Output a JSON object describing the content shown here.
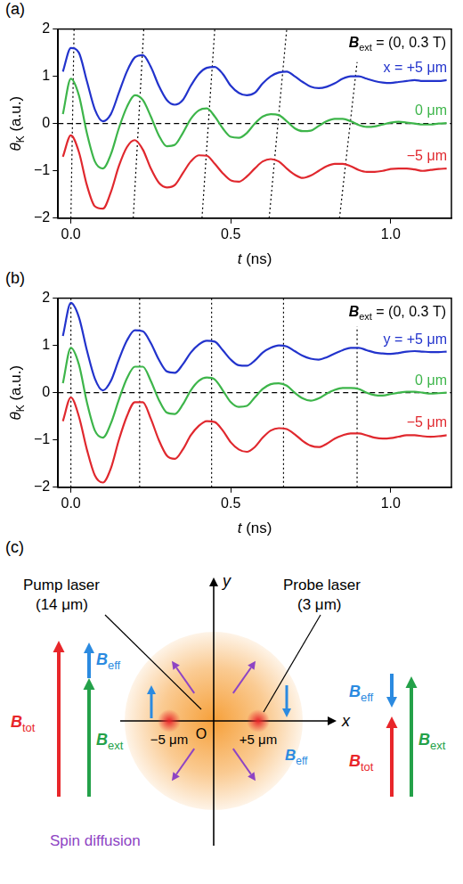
{
  "chart_data": [
    {
      "type": "line",
      "panel_label": "(a)",
      "annotation": [
        {
          "bi": "B"
        },
        {
          "sub": "ext"
        },
        " = (0, 0.3 T)"
      ],
      "x_label": [
        {
          "i": "t"
        },
        " (ns)"
      ],
      "y_label": [
        {
          "i": "θ"
        },
        {
          "sub": "K"
        },
        " (a.u.)"
      ],
      "x": [
        -0.025,
        0,
        0.025,
        0.05,
        0.075,
        0.1,
        0.125,
        0.15,
        0.175,
        0.2,
        0.225,
        0.25,
        0.275,
        0.3,
        0.325,
        0.35,
        0.375,
        0.4,
        0.425,
        0.45,
        0.475,
        0.5,
        0.525,
        0.55,
        0.575,
        0.6,
        0.625,
        0.65,
        0.675,
        0.7,
        0.725,
        0.75,
        0.775,
        0.8,
        0.825,
        0.85,
        0.875,
        0.9,
        0.925,
        0.95,
        0.975,
        1,
        1.025,
        1.05,
        1.075,
        1.1,
        1.125,
        1.15,
        1.175
      ],
      "series": [
        {
          "name": "x = +5 μm",
          "color": "#2233cc",
          "values": [
            1.1,
            1.6,
            1.5,
            0.9,
            0.3,
            0.05,
            0.2,
            0.65,
            1.1,
            1.4,
            1.45,
            1.2,
            0.8,
            0.5,
            0.4,
            0.5,
            0.8,
            1.05,
            1.18,
            1.2,
            1.05,
            0.8,
            0.65,
            0.6,
            0.65,
            0.85,
            1.0,
            1.08,
            1.1,
            1.0,
            0.88,
            0.78,
            0.75,
            0.78,
            0.85,
            0.95,
            1.0,
            1.0,
            0.95,
            0.9,
            0.87,
            0.86,
            0.88,
            0.9,
            0.92,
            0.9,
            0.9,
            0.9,
            0.92
          ]
        },
        {
          "name": "0 μm",
          "color": "#3db54a",
          "values": [
            0.2,
            0.95,
            0.6,
            -0.2,
            -0.8,
            -0.95,
            -0.65,
            -0.1,
            0.35,
            0.6,
            0.5,
            0.15,
            -0.25,
            -0.48,
            -0.45,
            -0.2,
            0.1,
            0.28,
            0.32,
            0.15,
            -0.1,
            -0.28,
            -0.3,
            -0.2,
            0.0,
            0.15,
            0.2,
            0.18,
            0.05,
            -0.1,
            -0.16,
            -0.15,
            -0.05,
            0.05,
            0.1,
            0.1,
            0.05,
            -0.03,
            -0.07,
            -0.06,
            -0.02,
            0.02,
            0.04,
            0.02,
            0.0,
            -0.02,
            -0.02,
            0.0,
            0.01
          ]
        },
        {
          "name": "−5 μm",
          "color": "#e0282e",
          "values": [
            -0.7,
            -0.25,
            -0.6,
            -1.3,
            -1.75,
            -1.8,
            -1.45,
            -0.9,
            -0.5,
            -0.35,
            -0.55,
            -0.95,
            -1.25,
            -1.35,
            -1.3,
            -1.05,
            -0.8,
            -0.67,
            -0.68,
            -0.85,
            -1.05,
            -1.2,
            -1.23,
            -1.12,
            -0.95,
            -0.8,
            -0.75,
            -0.8,
            -0.95,
            -1.08,
            -1.15,
            -1.1,
            -1.0,
            -0.9,
            -0.85,
            -0.85,
            -0.9,
            -0.98,
            -1.02,
            -1.02,
            -1.0,
            -0.96,
            -0.95,
            -0.95,
            -0.97,
            -1.0,
            -0.98,
            -0.96,
            -0.95
          ]
        }
      ],
      "xlim": [
        -0.04,
        1.19
      ],
      "ylim": [
        -2,
        2
      ],
      "xticks": [
        {
          "value": 0,
          "label": "0.0"
        },
        {
          "value": 0.5,
          "label": "0.5"
        },
        {
          "value": 1,
          "label": "1.0"
        }
      ],
      "yticks": [
        {
          "value": -2,
          "label": "−2"
        },
        {
          "value": -1,
          "label": "−1"
        },
        0,
        1,
        2
      ],
      "grid": false,
      "reference_lines": [
        {
          "y": 0,
          "line_style": "dashed"
        }
      ],
      "guide_lines": [
        {
          "x": [
            0.0,
            0.01
          ],
          "y": [
            -2,
            2
          ],
          "line_style": "dotted"
        },
        {
          "x": [
            0.195,
            0.228
          ],
          "y": [
            -2,
            2
          ],
          "line_style": "dotted"
        },
        {
          "x": [
            0.41,
            0.45
          ],
          "y": [
            -2,
            2
          ],
          "line_style": "dotted"
        },
        {
          "x": [
            0.62,
            0.675
          ],
          "y": [
            -2,
            2
          ],
          "line_style": "dotted"
        },
        {
          "x": [
            0.84,
            0.895
          ],
          "y": [
            -2,
            1.3
          ],
          "line_style": "dotted"
        }
      ]
    },
    {
      "type": "line",
      "panel_label": "(b)",
      "annotation": [
        {
          "bi": "B"
        },
        {
          "sub": "ext"
        },
        " = (0, 0.3 T)"
      ],
      "x_label": [
        {
          "i": "t"
        },
        " (ns)"
      ],
      "y_label": [
        {
          "i": "θ"
        },
        {
          "sub": "K"
        },
        " (a.u.)"
      ],
      "x": [
        -0.025,
        0,
        0.025,
        0.05,
        0.075,
        0.1,
        0.125,
        0.15,
        0.175,
        0.2,
        0.225,
        0.25,
        0.275,
        0.3,
        0.325,
        0.35,
        0.375,
        0.4,
        0.425,
        0.45,
        0.475,
        0.5,
        0.525,
        0.55,
        0.575,
        0.6,
        0.625,
        0.65,
        0.675,
        0.7,
        0.725,
        0.75,
        0.775,
        0.8,
        0.825,
        0.85,
        0.875,
        0.9,
        0.925,
        0.95,
        0.975,
        1,
        1.025,
        1.05,
        1.075,
        1.1,
        1.125,
        1.15,
        1.175
      ],
      "series": [
        {
          "name": "y = +5 μm",
          "color": "#2233cc",
          "values": [
            1.2,
            1.9,
            1.6,
            0.9,
            0.3,
            0.05,
            0.25,
            0.7,
            1.1,
            1.32,
            1.3,
            1.05,
            0.7,
            0.45,
            0.42,
            0.6,
            0.85,
            1.02,
            1.1,
            1.08,
            0.9,
            0.7,
            0.58,
            0.57,
            0.68,
            0.85,
            0.95,
            1.0,
            0.98,
            0.88,
            0.78,
            0.72,
            0.7,
            0.75,
            0.83,
            0.9,
            0.95,
            0.95,
            0.9,
            0.85,
            0.83,
            0.82,
            0.84,
            0.87,
            0.88,
            0.87,
            0.86,
            0.86,
            0.87
          ]
        },
        {
          "name": "0 μm",
          "color": "#3db54a",
          "values": [
            0.2,
            0.95,
            0.6,
            -0.2,
            -0.8,
            -0.95,
            -0.65,
            -0.15,
            0.3,
            0.55,
            0.55,
            0.25,
            -0.15,
            -0.42,
            -0.45,
            -0.25,
            0.05,
            0.25,
            0.32,
            0.28,
            0.05,
            -0.2,
            -0.3,
            -0.28,
            -0.1,
            0.08,
            0.18,
            0.2,
            0.15,
            0.0,
            -0.12,
            -0.17,
            -0.12,
            -0.02,
            0.06,
            0.1,
            0.1,
            0.08,
            0.0,
            -0.05,
            -0.06,
            -0.03,
            0.0,
            0.02,
            0.02,
            0.0,
            -0.02,
            -0.01,
            0.0
          ]
        },
        {
          "name": "−5 μm",
          "color": "#e0282e",
          "values": [
            -0.6,
            -0.1,
            -0.5,
            -1.2,
            -1.75,
            -1.9,
            -1.6,
            -1.0,
            -0.5,
            -0.2,
            -0.2,
            -0.55,
            -1.0,
            -1.33,
            -1.4,
            -1.2,
            -0.9,
            -0.7,
            -0.6,
            -0.62,
            -0.8,
            -1.05,
            -1.2,
            -1.25,
            -1.15,
            -0.95,
            -0.8,
            -0.75,
            -0.77,
            -0.88,
            -1.02,
            -1.12,
            -1.15,
            -1.08,
            -0.97,
            -0.9,
            -0.86,
            -0.86,
            -0.9,
            -0.95,
            -0.97,
            -0.96,
            -0.93,
            -0.9,
            -0.9,
            -0.92,
            -0.93,
            -0.92,
            -0.9
          ]
        }
      ],
      "xlim": [
        -0.04,
        1.19
      ],
      "ylim": [
        -2,
        2
      ],
      "xticks": [
        {
          "value": 0,
          "label": "0.0"
        },
        {
          "value": 0.5,
          "label": "0.5"
        },
        {
          "value": 1,
          "label": "1.0"
        }
      ],
      "yticks": [
        {
          "value": -2,
          "label": "−2"
        },
        {
          "value": -1,
          "label": "−1"
        },
        0,
        1,
        2
      ],
      "grid": false,
      "reference_lines": [
        {
          "y": 0,
          "line_style": "dashed"
        }
      ],
      "guide_lines": [
        {
          "x": [
            0.0,
            0.0
          ],
          "y": [
            -2,
            2
          ],
          "line_style": "dotted"
        },
        {
          "x": [
            0.215,
            0.215
          ],
          "y": [
            -2,
            2
          ],
          "line_style": "dotted"
        },
        {
          "x": [
            0.44,
            0.44
          ],
          "y": [
            -2,
            2
          ],
          "line_style": "dotted"
        },
        {
          "x": [
            0.665,
            0.665
          ],
          "y": [
            -2,
            2
          ],
          "line_style": "dotted"
        },
        {
          "x": [
            0.895,
            0.895
          ],
          "y": [
            -2,
            1.4
          ],
          "line_style": "dotted"
        }
      ]
    }
  ],
  "diagram": {
    "panel_label": "(c)",
    "pump_label": [
      "Pump laser",
      "(14 μm)"
    ],
    "probe_label": [
      "Probe laser",
      "(3 μm)"
    ],
    "axis_labels": {
      "x": "x",
      "y": "y"
    },
    "origin_label": "O",
    "spot_labels": [
      "−5 μm",
      "+5 μm"
    ],
    "diffusion_label": "Spin diffusion",
    "field_labels": {
      "tot": [
        {
          "bi": "B"
        },
        {
          "sub": "tot"
        }
      ],
      "ext": [
        {
          "bi": "B"
        },
        {
          "sub": "ext"
        }
      ],
      "eff": [
        {
          "bi": "B"
        },
        {
          "sub": "eff"
        }
      ]
    },
    "colors": {
      "tot": "#e8262a",
      "ext": "#24a149",
      "eff": "#2b8ae0",
      "diffusion": "#8e44c4",
      "pump": "#f6a03a",
      "probe": "#e8262a"
    }
  }
}
